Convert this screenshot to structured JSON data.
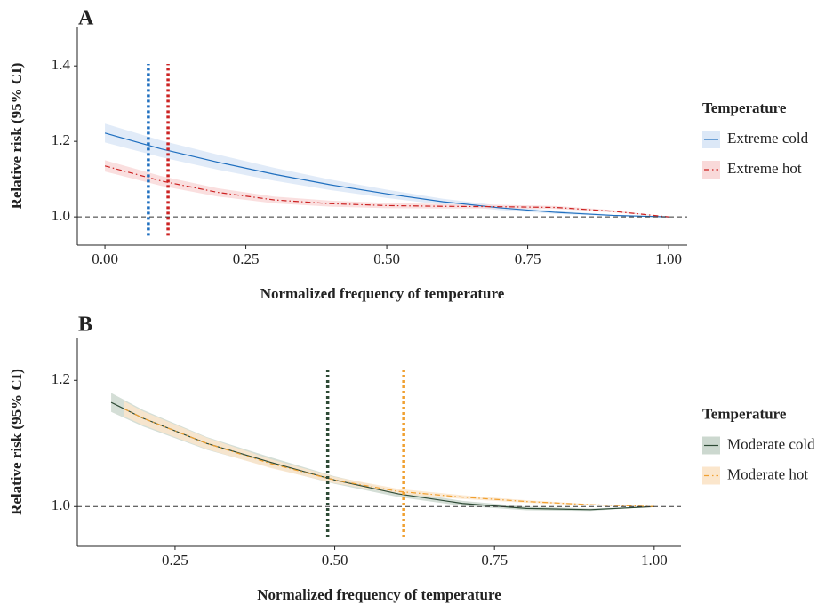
{
  "chart_data": [
    {
      "type": "line",
      "panel_label": "A",
      "x_label": "Normalized frequency of temperature",
      "y_label": "Relative risk (95% CI)",
      "legend_title": "Temperature",
      "legend": "right",
      "xlim": [
        -0.049,
        1.033
      ],
      "ylim": [
        0.925,
        1.504
      ],
      "xticks": [
        {
          "value": 0,
          "label": "0.00"
        },
        {
          "value": 0.25,
          "label": "0.25"
        },
        {
          "value": 0.5,
          "label": "0.50"
        },
        {
          "value": 0.75,
          "label": "0.75"
        },
        {
          "value": 1,
          "label": "1.00"
        }
      ],
      "yticks": [
        {
          "value": 1,
          "label": "1.0"
        },
        {
          "value": 1.2,
          "label": "1.2"
        },
        {
          "value": 1.4,
          "label": "1.4"
        }
      ],
      "reference_line": 1,
      "vlines": [
        {
          "x": 0.077,
          "y": [
            0.95,
            1.405
          ],
          "color": "#1f6fbf"
        },
        {
          "x": 0.112,
          "y": [
            0.95,
            1.405
          ],
          "color": "#cc2222"
        }
      ],
      "series": [
        {
          "name": "Extreme cold",
          "color": "#1f6fbf",
          "band_color": "#dce8f7",
          "dash": "solid",
          "x": [
            0,
            0.1,
            0.2,
            0.3,
            0.4,
            0.5,
            0.6,
            0.7,
            0.8,
            0.9,
            1
          ],
          "values": [
            1.222,
            1.18,
            1.145,
            1.113,
            1.085,
            1.061,
            1.04,
            1.024,
            1.012,
            1.004,
            1
          ],
          "lower": [
            1.197,
            1.158,
            1.125,
            1.096,
            1.071,
            1.05,
            1.032,
            1.018,
            1.008,
            1.002,
            1
          ],
          "upper": [
            1.247,
            1.202,
            1.165,
            1.13,
            1.099,
            1.072,
            1.048,
            1.03,
            1.016,
            1.006,
            1
          ]
        },
        {
          "name": "Extreme hot",
          "color": "#cc2222",
          "band_color": "#f9d9d9",
          "dash": "dashdot",
          "x": [
            0,
            0.1,
            0.2,
            0.3,
            0.4,
            0.5,
            0.6,
            0.7,
            0.8,
            0.9,
            1
          ],
          "values": [
            1.135,
            1.095,
            1.065,
            1.045,
            1.035,
            1.03,
            1.028,
            1.027,
            1.025,
            1.015,
            1
          ],
          "lower": [
            1.12,
            1.082,
            1.054,
            1.036,
            1.027,
            1.023,
            1.022,
            1.022,
            1.021,
            1.012,
            1
          ],
          "upper": [
            1.15,
            1.108,
            1.076,
            1.054,
            1.043,
            1.037,
            1.034,
            1.032,
            1.029,
            1.018,
            1
          ]
        }
      ]
    },
    {
      "type": "line",
      "panel_label": "B",
      "x_label": "Normalized frequency of temperature",
      "y_label": "Relative risk (95% CI)",
      "legend_title": "Temperature",
      "legend": "right",
      "xlim": [
        0.097,
        1.042
      ],
      "ylim": [
        0.937,
        1.268
      ],
      "xticks": [
        {
          "value": 0.25,
          "label": "0.25"
        },
        {
          "value": 0.5,
          "label": "0.50"
        },
        {
          "value": 0.75,
          "label": "0.75"
        },
        {
          "value": 1,
          "label": "1.00"
        }
      ],
      "yticks": [
        {
          "value": 1,
          "label": "1.0"
        },
        {
          "value": 1.2,
          "label": "1.2"
        }
      ],
      "reference_line": 1,
      "vlines": [
        {
          "x": 0.489,
          "y": [
            0.951,
            1.221
          ],
          "color": "#2d4a35"
        },
        {
          "x": 0.608,
          "y": [
            0.951,
            1.221
          ],
          "color": "#f0a030"
        }
      ],
      "series": [
        {
          "name": "Moderate cold",
          "color": "#2d4a35",
          "band_color": "#ccd8cf",
          "dash": "solid",
          "x": [
            0.15,
            0.2,
            0.3,
            0.4,
            0.5,
            0.6,
            0.7,
            0.8,
            0.9,
            1
          ],
          "values": [
            1.165,
            1.14,
            1.1,
            1.07,
            1.042,
            1.02,
            1.005,
            0.997,
            0.995,
            1
          ],
          "lower": [
            1.15,
            1.127,
            1.09,
            1.062,
            1.036,
            1.015,
            1.001,
            0.994,
            0.993,
            1
          ],
          "upper": [
            1.18,
            1.153,
            1.11,
            1.078,
            1.048,
            1.025,
            1.009,
            1,
            0.997,
            1
          ]
        },
        {
          "name": "Moderate hot",
          "color": "#f0a030",
          "band_color": "#fbe6cc",
          "dash": "dashdot",
          "x": [
            0.17,
            0.2,
            0.3,
            0.4,
            0.5,
            0.6,
            0.7,
            0.8,
            0.9,
            1
          ],
          "values": [
            1.155,
            1.14,
            1.1,
            1.068,
            1.042,
            1.024,
            1.015,
            1.008,
            1.003,
            1
          ],
          "lower": [
            1.143,
            1.129,
            1.091,
            1.061,
            1.037,
            1.02,
            1.012,
            1.006,
            1.002,
            1
          ],
          "upper": [
            1.167,
            1.151,
            1.109,
            1.075,
            1.047,
            1.028,
            1.018,
            1.01,
            1.004,
            1
          ]
        }
      ]
    }
  ]
}
